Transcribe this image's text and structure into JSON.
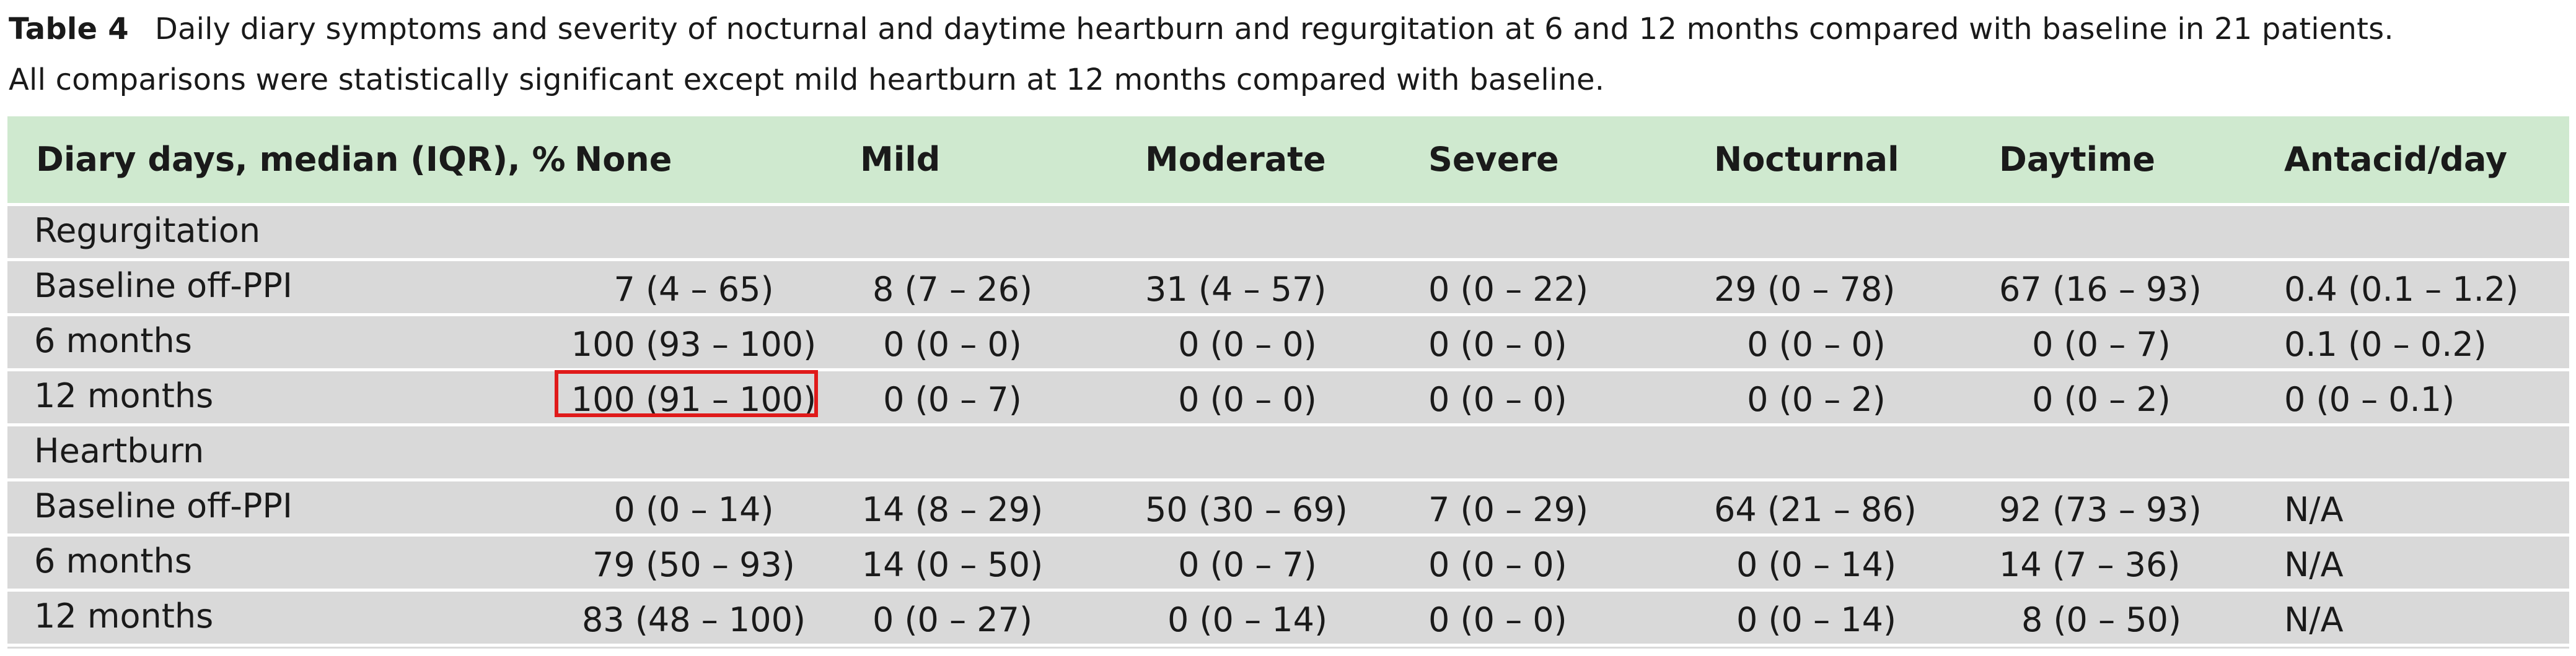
{
  "caption": {
    "label": "Table 4",
    "text_line1": "Daily diary symptoms and severity of nocturnal and daytime heartburn and regurgitation at 6 and 12 months compared with baseline in 21 patients.",
    "text_line2": "All comparisons were statistically significant except mild heartburn at 12 months compared with baseline."
  },
  "table": {
    "headers": [
      "Diary days, median (IQR), %",
      "None",
      "Mild",
      "Moderate",
      "Severe",
      "Nocturnal",
      "Daytime",
      "Antacid/day"
    ],
    "sections": [
      {
        "title": "Regurgitation",
        "rows": [
          {
            "label": "Baseline off-PPI",
            "cells": [
              "7 (4 – 65)",
              "8 (7 – 26)",
              "31 (4 – 57)",
              "0 (0 – 22)",
              "29 (0 – 78)",
              "67 (16 – 93)",
              "0.4 (0.1 – 1.2)"
            ]
          },
          {
            "label": "6 months",
            "cells": [
              "100 (93 – 100)",
              "0 (0 – 0)",
              "0 (0 – 0)",
              "0 (0 – 0)",
              "0 (0 – 0)",
              "0 (0 – 7)",
              "0.1 (0 – 0.2)"
            ]
          },
          {
            "label": "12 months",
            "cells": [
              "100 (91 – 100)",
              "0 (0 – 7)",
              "0 (0 – 0)",
              "0 (0 – 0)",
              "0 (0 – 2)",
              "0 (0 – 2)",
              "0 (0 – 0.1)"
            ]
          }
        ]
      },
      {
        "title": "Heartburn",
        "rows": [
          {
            "label": "Baseline off-PPI",
            "cells": [
              "0 (0 – 14)",
              "14 (8 – 29)",
              "50 (30 – 69)",
              "7 (0 – 29)",
              "64 (21 – 86)",
              "92 (73 – 93)",
              "N/A"
            ]
          },
          {
            "label": "6 months",
            "cells": [
              "79 (50 – 93)",
              "14 (0 – 50)",
              "0 (0 – 7)",
              "0 (0 – 0)",
              "0 (0 – 14)",
              "14 (7 – 36)",
              "N/A"
            ]
          },
          {
            "label": "12 months",
            "cells": [
              "83 (48 – 100)",
              "0 (0 – 27)",
              "0 (0 – 14)",
              "0 (0 – 0)",
              "0 (0 – 14)",
              "8 (0 – 50)",
              "N/A"
            ]
          }
        ]
      }
    ]
  },
  "colors": {
    "header_bg": "#cfe9cf",
    "body_bg": "#d9d9d9",
    "highlight": "#e01a1a"
  }
}
